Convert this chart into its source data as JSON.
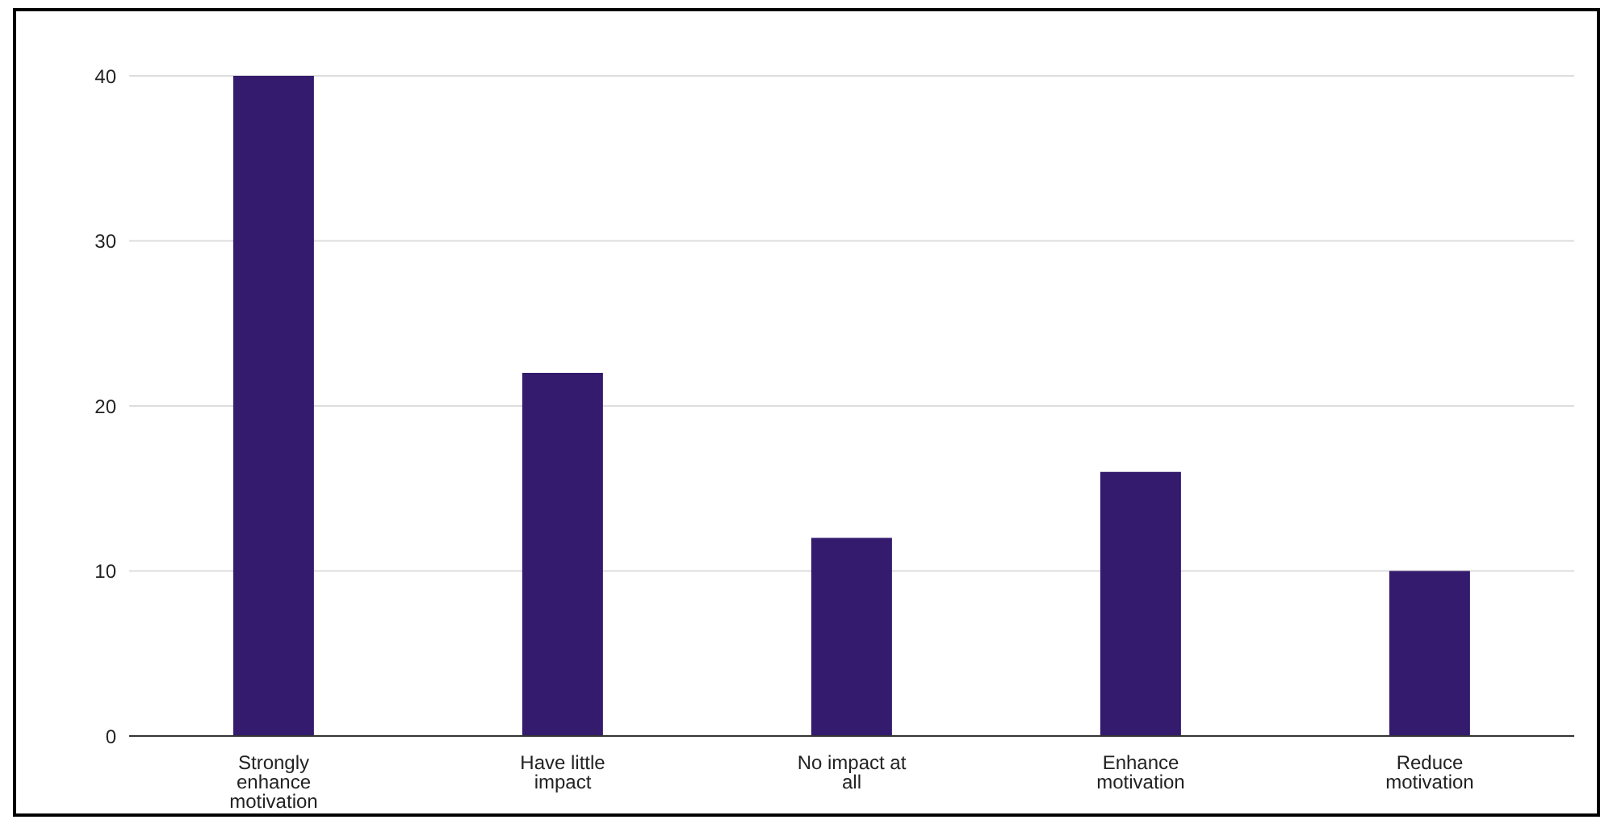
{
  "chart_data": {
    "type": "bar",
    "categories": [
      "Strongly enhance motivation",
      "Have little impact",
      "No impact at all",
      "Enhance motivation",
      "Reduce motivation"
    ],
    "values": [
      40,
      22,
      12,
      16,
      10
    ],
    "color": "#341b6e",
    "ylim": [
      0,
      40
    ],
    "yticks": [
      0,
      10,
      20,
      30,
      40
    ],
    "grid": "y"
  }
}
